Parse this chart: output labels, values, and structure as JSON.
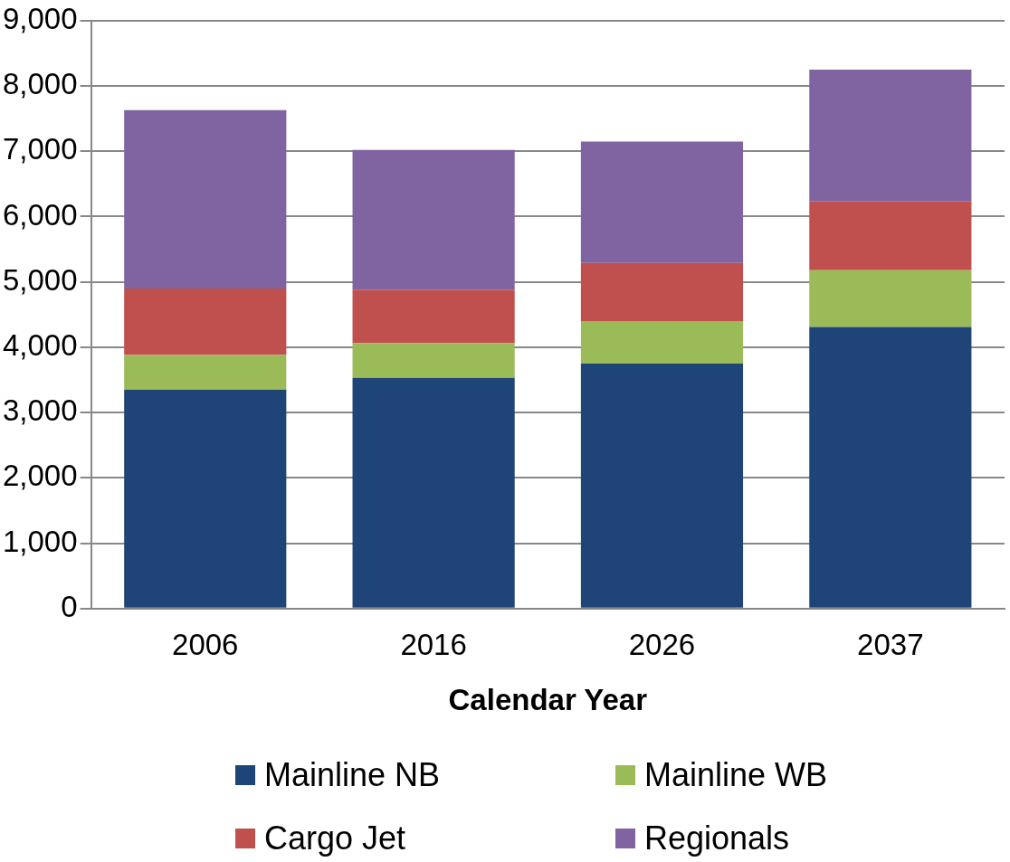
{
  "chart_data": {
    "type": "bar",
    "stacked": true,
    "xlabel": "Calendar Year",
    "categories": [
      "2006",
      "2016",
      "2026",
      "2037"
    ],
    "series": [
      {
        "name": "Mainline NB",
        "color": "#1f4477",
        "values": [
          3350,
          3530,
          3750,
          4310
        ]
      },
      {
        "name": "Mainline WB",
        "color": "#9bbb59",
        "values": [
          530,
          530,
          650,
          870
        ]
      },
      {
        "name": "Cargo Jet",
        "color": "#c0504d",
        "values": [
          1020,
          820,
          890,
          1050
        ]
      },
      {
        "name": "Regionals",
        "color": "#8064a2",
        "values": [
          2730,
          2140,
          1860,
          2020
        ]
      }
    ],
    "ylim": [
      0,
      9000
    ],
    "yticks": [
      {
        "value": 0,
        "label": "0"
      },
      {
        "value": 1000,
        "label": "1,000"
      },
      {
        "value": 2000,
        "label": "2,000"
      },
      {
        "value": 3000,
        "label": "3,000"
      },
      {
        "value": 4000,
        "label": "4,000"
      },
      {
        "value": 5000,
        "label": "5,000"
      },
      {
        "value": 6000,
        "label": "6,000"
      },
      {
        "value": 7000,
        "label": "7,000"
      },
      {
        "value": 8000,
        "label": "8,000"
      },
      {
        "value": 9000,
        "label": "9,000"
      }
    ],
    "grid": "y",
    "legend": "bottom"
  }
}
